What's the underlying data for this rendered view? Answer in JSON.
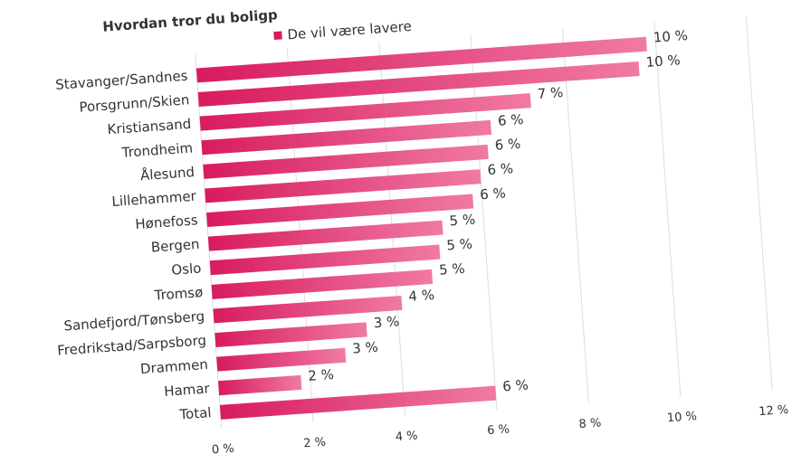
{
  "chart_data": {
    "type": "bar",
    "orientation": "horizontal",
    "title": "Hvordan tror du boligp",
    "categories": [
      "Stavanger/Sandnes",
      "Porsgrunn/Skien",
      "Kristiansand",
      "Trondheim",
      "Ålesund",
      "Lillehammer",
      "Hønefoss",
      "Bergen",
      "Oslo",
      "Tromsø",
      "Sandefjord/Tønsberg",
      "Fredrikstad/Sarpsborg",
      "Drammen",
      "Hamar",
      "Total"
    ],
    "series": [
      {
        "name": "De vil være lavere",
        "color": "#d81b60",
        "values": [
          9.8,
          9.6,
          7.2,
          6.3,
          6.2,
          6.0,
          5.8,
          5.1,
          5.0,
          4.8,
          4.1,
          3.3,
          2.8,
          1.8,
          6.0
        ],
        "value_labels": [
          "10 %",
          "10 %",
          "7 %",
          "6 %",
          "6 %",
          "6 %",
          "6 %",
          "5 %",
          "5 %",
          "5 %",
          "4 %",
          "3 %",
          "3 %",
          "2 %",
          "6 %"
        ]
      }
    ],
    "xlim": [
      0,
      12
    ],
    "xticks": [
      {
        "value": 0,
        "label": "0 %"
      },
      {
        "value": 2,
        "label": "2 %"
      },
      {
        "value": 4,
        "label": "4 %"
      },
      {
        "value": 6,
        "label": "6 %"
      },
      {
        "value": 8,
        "label": "8 %"
      },
      {
        "value": 10,
        "label": "10 %"
      },
      {
        "value": 12,
        "label": "12 %"
      }
    ],
    "grid": true
  }
}
